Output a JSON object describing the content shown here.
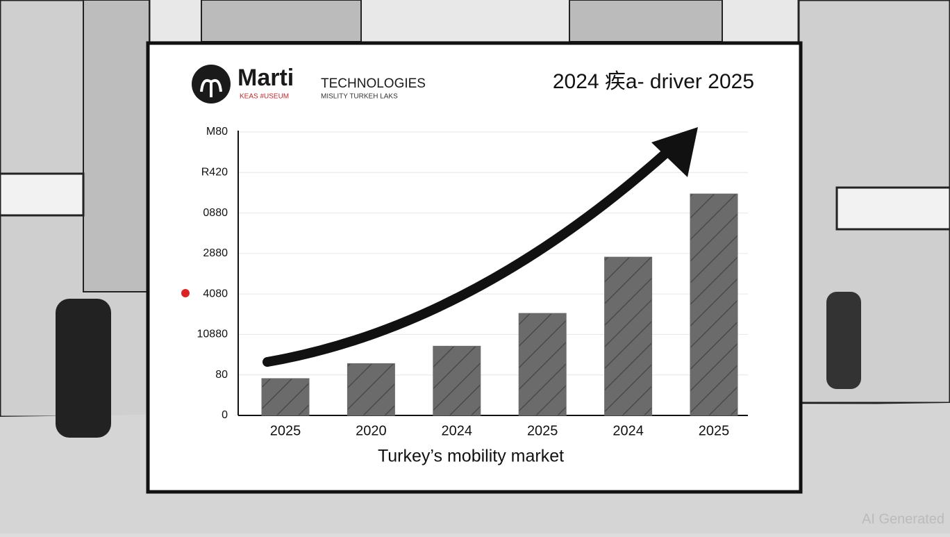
{
  "chart_data": {
    "type": "bar",
    "logo": {
      "name": "Marti",
      "company": "TECHNOLOGIES",
      "tagline_left": "KEAS #USEUM",
      "tagline_right": "MISLITY TURKEH LAKS"
    },
    "title": "2024 疾a- driver 2025",
    "xlabel": "Turkey’s mobility market",
    "categories": [
      "2025",
      "2020",
      "2024",
      "2025",
      "2024",
      "2025"
    ],
    "values": [
      0.91,
      1.28,
      1.71,
      2.52,
      3.91,
      5.47
    ],
    "color": "#6b6b6b",
    "ylim": [
      0,
      7
    ],
    "yticks": [
      {
        "value": 0,
        "label": "0"
      },
      {
        "value": 1,
        "label": "80"
      },
      {
        "value": 2,
        "label": "10880"
      },
      {
        "value": 3,
        "label": "4080"
      },
      {
        "value": 4,
        "label": "2880"
      },
      {
        "value": 5,
        "label": "0880"
      },
      {
        "value": 6,
        "label": "R420"
      },
      {
        "value": 7,
        "label": "M80"
      }
    ],
    "grid": true,
    "watermark": "AI Generated"
  }
}
